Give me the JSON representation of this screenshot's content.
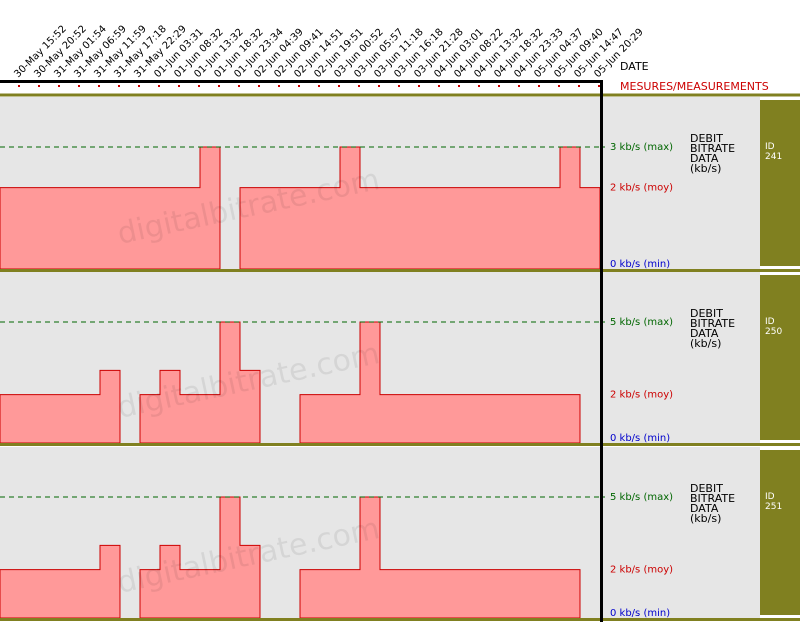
{
  "header": {
    "date_label": "DATE",
    "measurements_label": "MESURES/MEASUREMENTS"
  },
  "watermark": "digitalbitrate.com",
  "colors": {
    "fill": "#ff9999",
    "stroke": "#cc0000",
    "panel_bg": "#e6e6e6",
    "divider": "#808020",
    "id_box": "#808020",
    "max_text": "#006600",
    "moy_text": "#cc0000",
    "min_text": "#0000cc"
  },
  "chart_data": {
    "type": "area",
    "x": [
      "30-May 15:52",
      "30-May 20:52",
      "31-May 01:54",
      "31-May 06:59",
      "31-May 11:59",
      "31-May 17:18",
      "31-May 22:29",
      "01-Jun 03:31",
      "01-Jun 08:32",
      "01-Jun 13:32",
      "01-Jun 18:32",
      "01-Jun 23:34",
      "02-Jun 04:39",
      "02-Jun 09:41",
      "02-Jun 14:51",
      "02-Jun 19:51",
      "03-Jun 00:52",
      "03-Jun 05:57",
      "03-Jun 11:18",
      "03-Jun 16:18",
      "03-Jun 21:28",
      "04-Jun 03:01",
      "04-Jun 08:22",
      "04-Jun 13:32",
      "04-Jun 18:32",
      "04-Jun 23:33",
      "05-Jun 04:37",
      "05-Jun 09:40",
      "05-Jun 14:47",
      "05-Jun 20:29"
    ],
    "panels": [
      {
        "id_label": "ID",
        "id": "241",
        "title_lines": [
          "DEBIT",
          "BITRATE",
          "DATA",
          "(kb/s)"
        ],
        "max_label": "3 kb/s (max)",
        "moy_label": "2 kb/s (moy)",
        "min_label": "0 kb/s (min)",
        "ylim": [
          0,
          3
        ],
        "values": [
          2,
          2,
          2,
          2,
          2,
          2,
          2,
          2,
          2,
          2,
          3,
          0,
          2,
          2,
          2,
          2,
          2,
          3,
          2,
          2,
          2,
          2,
          2,
          2,
          2,
          2,
          2,
          2,
          3,
          2
        ]
      },
      {
        "id_label": "ID",
        "id": "250",
        "title_lines": [
          "DEBIT",
          "BITRATE",
          "DATA",
          "(kb/s)"
        ],
        "max_label": "5 kb/s (max)",
        "moy_label": "2 kb/s (moy)",
        "min_label": "0 kb/s (min)",
        "ylim": [
          0,
          5
        ],
        "values": [
          2,
          2,
          2,
          2,
          2,
          3,
          0,
          2,
          3,
          2,
          2,
          5,
          3,
          0,
          0,
          2,
          2,
          2,
          5,
          2,
          2,
          2,
          2,
          2,
          2,
          2,
          2,
          2,
          2,
          0
        ]
      },
      {
        "id_label": "ID",
        "id": "251",
        "title_lines": [
          "DEBIT",
          "BITRATE",
          "DATA",
          "(kb/s)"
        ],
        "max_label": "5 kb/s (max)",
        "moy_label": "2 kb/s (moy)",
        "min_label": "0 kb/s (min)",
        "ylim": [
          0,
          5
        ],
        "values": [
          2,
          2,
          2,
          2,
          2,
          3,
          0,
          2,
          3,
          2,
          2,
          5,
          3,
          0,
          0,
          2,
          2,
          2,
          5,
          2,
          2,
          2,
          2,
          2,
          2,
          2,
          2,
          2,
          2,
          0
        ]
      }
    ]
  }
}
